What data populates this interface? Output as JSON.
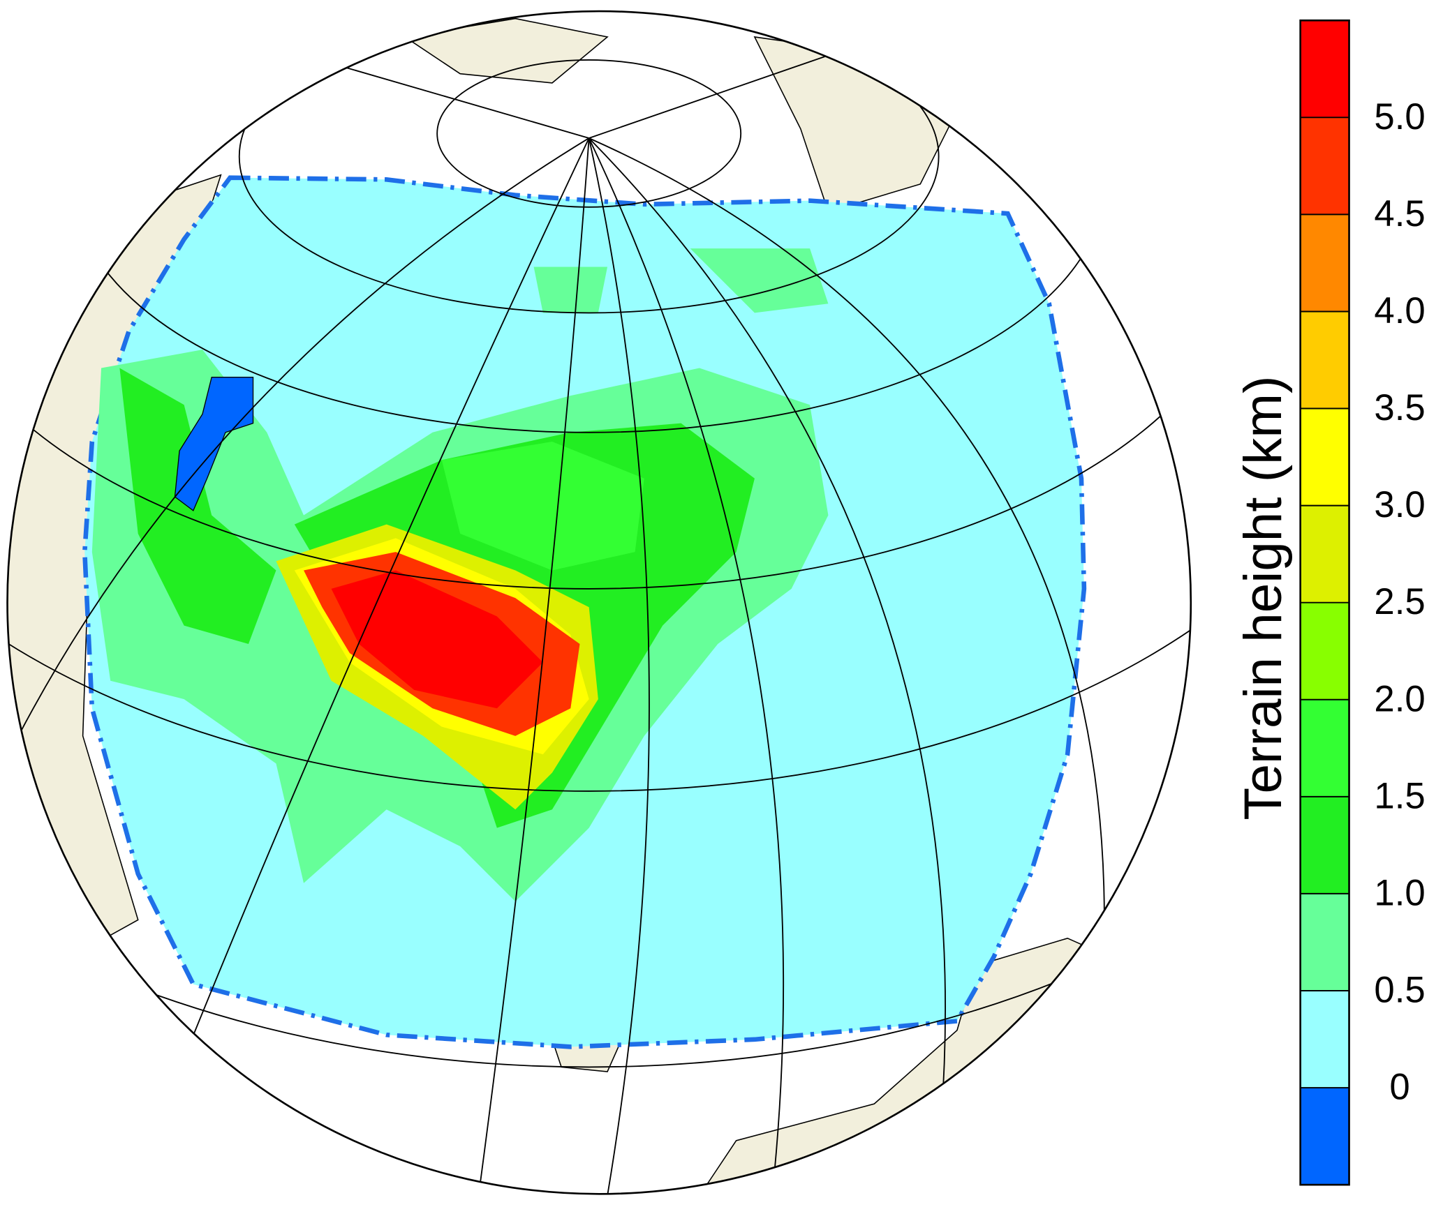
{
  "colorbar": {
    "title": "Terrain height (km)",
    "ticks": [
      0,
      0.5,
      {
        "value": 1,
        "label": "1.0"
      },
      1.5,
      {
        "value": 2,
        "label": "2.0"
      },
      2.5,
      {
        "value": 3,
        "label": "3.0"
      },
      3.5,
      {
        "value": 4,
        "label": "4.0"
      },
      4.5,
      {
        "value": 5,
        "label": "5.0"
      }
    ],
    "colors": [
      "#0066ff",
      "#99ffff",
      "#66ff99",
      "#22ee22",
      "#33ff33",
      "#88ff00",
      "#ddf000",
      "#ffff00",
      "#ffcc00",
      "#ff8800",
      "#ff3300",
      "#ff0000"
    ]
  }
}
